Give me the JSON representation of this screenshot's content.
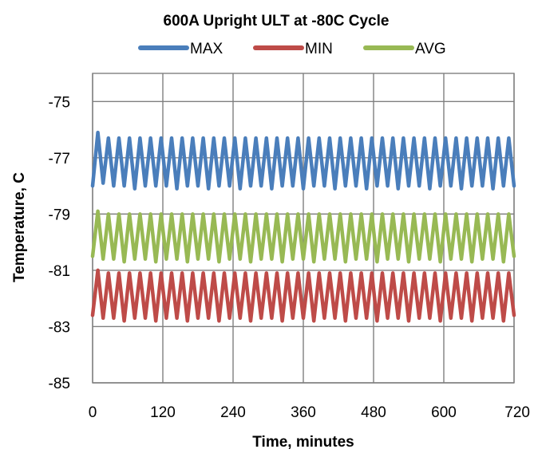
{
  "chart_data": {
    "type": "line",
    "title": "600A Upright  ULT at  -80C Cycle",
    "xlabel": "Time, minutes",
    "ylabel": "Temperature, C",
    "xlim": [
      0,
      720
    ],
    "ylim": [
      -85,
      -74
    ],
    "x_ticks": [
      0,
      120,
      240,
      360,
      480,
      600,
      720
    ],
    "y_ticks": [
      -75,
      -77,
      -79,
      -81,
      -83,
      -85
    ],
    "grid": "vertical and horizontal major gridlines",
    "legend_position": "top",
    "x": [
      0,
      9,
      18,
      27,
      36,
      45,
      54,
      63,
      72,
      81,
      90,
      99,
      108,
      117,
      126,
      135,
      144,
      153,
      162,
      171,
      180,
      189,
      198,
      207,
      216,
      225,
      234,
      243,
      252,
      261,
      270,
      279,
      288,
      297,
      306,
      315,
      324,
      333,
      342,
      351,
      360,
      369,
      378,
      387,
      396,
      405,
      414,
      423,
      432,
      441,
      450,
      459,
      468,
      477,
      486,
      495,
      504,
      513,
      522,
      531,
      540,
      549,
      558,
      567,
      576,
      585,
      594,
      603,
      612,
      621,
      630,
      639,
      648,
      657,
      666,
      675,
      684,
      693,
      702,
      711,
      720
    ],
    "series": [
      {
        "name": "MAX",
        "color": "#4a7ebb",
        "values": [
          -78.0,
          -76.1,
          -77.9,
          -76.3,
          -78.0,
          -76.3,
          -78.0,
          -76.3,
          -78.1,
          -76.3,
          -78.0,
          -76.3,
          -78.0,
          -76.3,
          -78.0,
          -76.3,
          -78.1,
          -76.3,
          -78.0,
          -76.3,
          -78.0,
          -76.3,
          -78.1,
          -76.3,
          -78.0,
          -76.3,
          -78.0,
          -76.3,
          -78.1,
          -76.3,
          -78.0,
          -76.3,
          -78.0,
          -76.3,
          -78.1,
          -76.3,
          -78.0,
          -76.3,
          -78.0,
          -76.3,
          -78.1,
          -76.3,
          -78.0,
          -76.3,
          -78.0,
          -76.3,
          -78.1,
          -76.3,
          -78.0,
          -76.3,
          -78.0,
          -76.3,
          -78.1,
          -76.3,
          -78.0,
          -76.3,
          -78.0,
          -76.3,
          -78.1,
          -76.3,
          -78.0,
          -76.3,
          -78.0,
          -76.3,
          -78.1,
          -76.3,
          -78.0,
          -76.3,
          -78.0,
          -76.3,
          -78.1,
          -76.3,
          -78.0,
          -76.3,
          -78.0,
          -76.3,
          -78.1,
          -76.3,
          -78.0,
          -76.3,
          -78.0
        ]
      },
      {
        "name": "MIN",
        "color": "#be4b48",
        "values": [
          -82.6,
          -81.0,
          -82.7,
          -81.1,
          -82.7,
          -81.1,
          -82.8,
          -81.1,
          -82.7,
          -81.1,
          -82.7,
          -81.1,
          -82.8,
          -81.1,
          -82.7,
          -81.1,
          -82.7,
          -81.1,
          -82.8,
          -81.1,
          -82.7,
          -81.1,
          -82.7,
          -81.1,
          -82.8,
          -81.1,
          -82.7,
          -81.1,
          -82.7,
          -81.1,
          -82.8,
          -81.1,
          -82.7,
          -81.1,
          -82.7,
          -81.1,
          -82.8,
          -81.1,
          -82.7,
          -81.1,
          -82.7,
          -81.1,
          -82.8,
          -81.1,
          -82.7,
          -81.1,
          -82.7,
          -81.1,
          -82.8,
          -81.1,
          -82.7,
          -81.1,
          -82.7,
          -81.1,
          -82.8,
          -81.1,
          -82.7,
          -81.1,
          -82.7,
          -81.1,
          -82.8,
          -81.1,
          -82.7,
          -81.1,
          -82.7,
          -81.1,
          -82.8,
          -81.1,
          -82.7,
          -81.1,
          -82.7,
          -81.1,
          -82.8,
          -81.1,
          -82.7,
          -81.1,
          -82.7,
          -81.1,
          -82.8,
          -81.1,
          -82.6
        ]
      },
      {
        "name": "AVG",
        "color": "#98b954",
        "values": [
          -80.5,
          -78.9,
          -80.6,
          -79.0,
          -80.6,
          -79.0,
          -80.7,
          -79.0,
          -80.6,
          -79.0,
          -80.6,
          -79.0,
          -80.7,
          -79.0,
          -80.6,
          -79.0,
          -80.6,
          -79.0,
          -80.7,
          -79.0,
          -80.6,
          -79.0,
          -80.6,
          -79.0,
          -80.7,
          -79.0,
          -80.6,
          -79.0,
          -80.6,
          -79.0,
          -80.7,
          -79.0,
          -80.6,
          -79.0,
          -80.6,
          -79.0,
          -80.7,
          -79.0,
          -80.6,
          -79.0,
          -80.6,
          -79.0,
          -80.7,
          -79.0,
          -80.6,
          -79.0,
          -80.6,
          -79.0,
          -80.7,
          -79.0,
          -80.6,
          -79.0,
          -80.6,
          -79.0,
          -80.7,
          -79.0,
          -80.6,
          -79.0,
          -80.6,
          -79.0,
          -80.7,
          -79.0,
          -80.6,
          -79.0,
          -80.6,
          -79.0,
          -80.7,
          -79.0,
          -80.6,
          -79.0,
          -80.6,
          -79.0,
          -80.7,
          -79.0,
          -80.6,
          -79.0,
          -80.6,
          -79.0,
          -80.7,
          -79.0,
          -80.5
        ]
      }
    ]
  }
}
